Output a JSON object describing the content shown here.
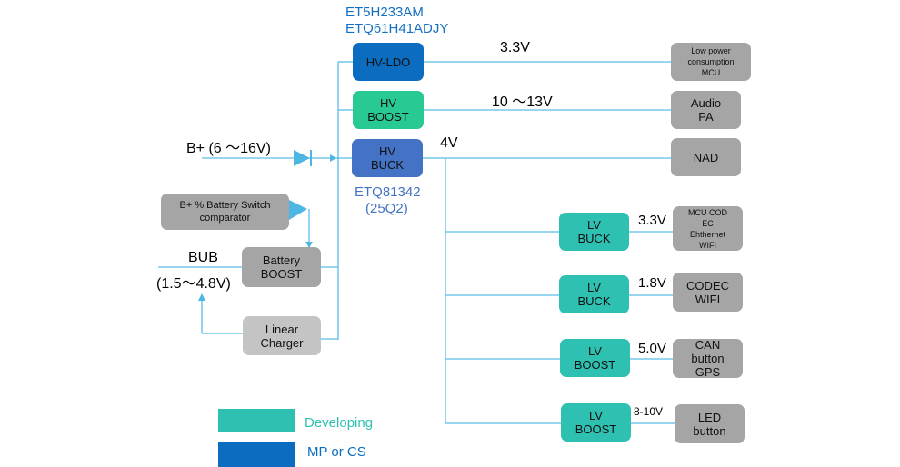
{
  "hv_regulators": {
    "ldo": {
      "label": "HV-LDO",
      "parts": [
        "ET5H233AM",
        "ETQ61H41ADJY"
      ],
      "output": "3.3V",
      "load": "Low power\nconsumption\nMCU"
    },
    "boost": {
      "label": "HV\nBOOST",
      "output": "10 ～13V",
      "load": "Audio\nPA"
    },
    "buck": {
      "label": "HV\nBUCK",
      "parts": [
        "ETQ81342",
        "(25Q2)"
      ],
      "output": "4V",
      "load": "NAD"
    }
  },
  "input": {
    "bplus": "B+ (6 ～16V)",
    "comparator": "B+ % Battery Switch\ncomparator",
    "bub": "BUB",
    "bub_range": "(1.5～4.8V)",
    "battery_boost": "Battery\nBOOST",
    "linear_charger": "Linear\nCharger"
  },
  "lv_regulators": [
    {
      "label": "LV\nBUCK",
      "output": "3.3V",
      "load": "MCU COD\nEC\nEhthernet\nWIFI"
    },
    {
      "label": "LV\nBUCK",
      "output": "1.8V",
      "load": "CODEC\nWIFI"
    },
    {
      "label": "LV\nBOOST",
      "output": "5.0V",
      "load": "CAN\nbutton\nGPS"
    },
    {
      "label": "LV\nBOOST",
      "output": "8-10V",
      "load": "LED\nbutton"
    }
  ],
  "legend": [
    {
      "label": "Developing",
      "color": "#2ec1b2"
    },
    {
      "label": "MP or CS",
      "color": "#0b6cc0"
    }
  ],
  "colors": {
    "hv_ldo": "#0b6cc0",
    "hv_boost": "#29c994",
    "hv_buck": "#4472c4",
    "wire": "#5bbde8"
  }
}
